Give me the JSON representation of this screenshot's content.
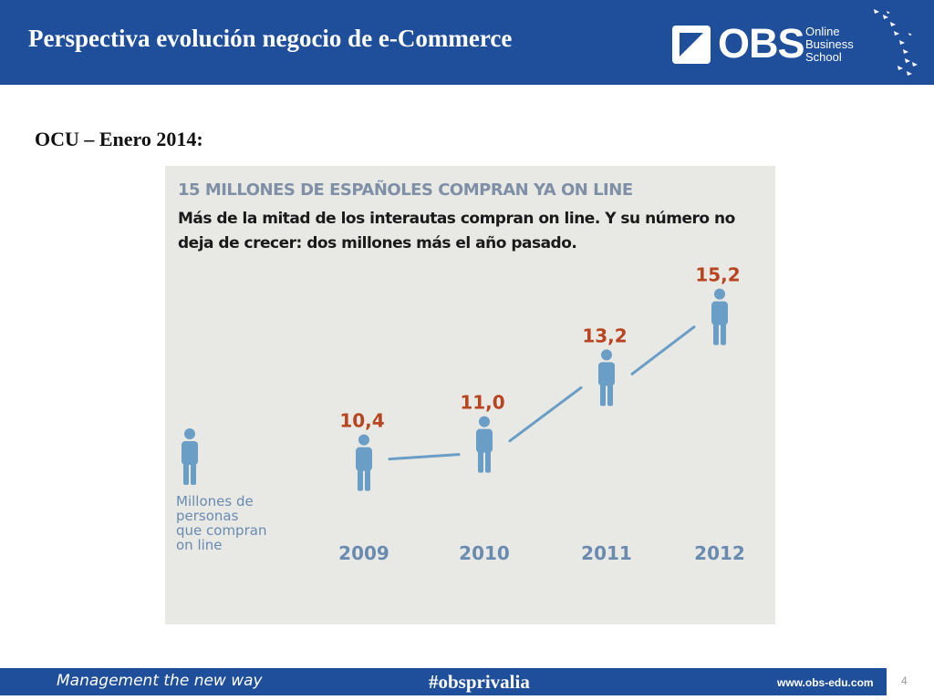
{
  "header": {
    "title": "Perspectiva evolución negocio de e-Commerce",
    "logo_text": "OBS",
    "logo_sub": [
      "Online",
      "Business",
      "School"
    ]
  },
  "subtitle": "OCU – Enero 2014:",
  "chart_data": {
    "type": "line",
    "headline": "15 MILLONES DE ESPAÑOLES COMPRAN YA ON LINE",
    "description": "Más de la mitad de los interautas compran on line. Y su número no deja de crecer: dos millones más el año pasado.",
    "legend_lines": [
      "Millones de",
      "personas",
      "que compran",
      "on line"
    ],
    "categories": [
      "2009",
      "2010",
      "2011",
      "2012"
    ],
    "values": [
      10.4,
      11.0,
      13.2,
      15.2
    ],
    "value_labels": [
      "10,4",
      "11,0",
      "13,2",
      "15,2"
    ],
    "ylim": [
      10,
      16
    ],
    "colors": {
      "headline": "#7f8fa6",
      "value_label": "#b8451f",
      "icon": "#6b9ec7",
      "line": "#6b9ec7",
      "year": "#6a8bb0"
    }
  },
  "footer": {
    "slogan": "Management the new way",
    "hashtag": "#obsprivalia",
    "url": "www.obs-edu.com"
  },
  "page_number": "4",
  "colors": {
    "brand_blue": "#1f4e9b"
  }
}
